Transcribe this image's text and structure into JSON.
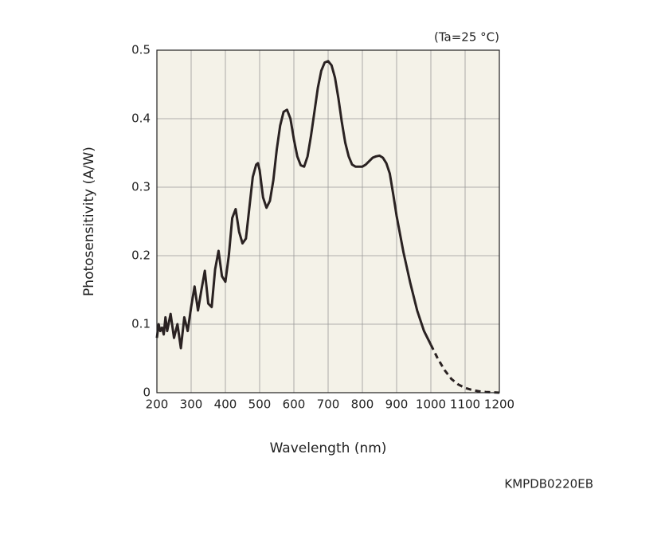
{
  "chart_data": {
    "type": "line",
    "x_label": "Wavelength (nm)",
    "y_label": "Photosensitivity (A/W)",
    "annotation": "(Ta=25 °C)",
    "code": "KMPDB0220EB",
    "xlim": [
      200,
      1200
    ],
    "ylim": [
      0,
      0.5
    ],
    "xticks": [
      200,
      300,
      400,
      500,
      600,
      700,
      800,
      900,
      1000,
      1100,
      1200
    ],
    "yticks": [
      0,
      0.1,
      0.2,
      0.3,
      0.4,
      0.5
    ],
    "grid": true,
    "background": "#f4f2e8",
    "series": [
      {
        "color": "#2a2222",
        "dashed": false,
        "x": [
          200,
          205,
          210,
          215,
          220,
          225,
          230,
          240,
          250,
          260,
          270,
          280,
          290,
          300,
          310,
          320,
          330,
          340,
          350,
          360,
          370,
          380,
          390,
          400,
          410,
          420,
          430,
          440,
          450,
          460,
          470,
          480,
          490,
          495,
          500,
          510,
          520,
          530,
          540,
          550,
          560,
          570,
          580,
          590,
          600,
          610,
          620,
          630,
          640,
          650,
          660,
          670,
          680,
          690,
          700,
          710,
          720,
          730,
          740,
          750,
          760,
          770,
          780,
          790,
          800,
          810,
          820,
          830,
          840,
          850,
          860,
          870,
          880,
          890,
          900,
          920,
          940,
          960,
          980,
          1000
        ],
        "values": [
          0.08,
          0.1,
          0.09,
          0.095,
          0.085,
          0.11,
          0.09,
          0.115,
          0.08,
          0.1,
          0.065,
          0.11,
          0.09,
          0.125,
          0.155,
          0.12,
          0.15,
          0.178,
          0.13,
          0.125,
          0.18,
          0.207,
          0.17,
          0.162,
          0.2,
          0.255,
          0.268,
          0.235,
          0.218,
          0.225,
          0.27,
          0.315,
          0.333,
          0.335,
          0.325,
          0.285,
          0.27,
          0.28,
          0.31,
          0.355,
          0.39,
          0.41,
          0.413,
          0.4,
          0.37,
          0.345,
          0.332,
          0.33,
          0.345,
          0.375,
          0.41,
          0.445,
          0.47,
          0.482,
          0.484,
          0.478,
          0.46,
          0.43,
          0.395,
          0.365,
          0.345,
          0.333,
          0.33,
          0.33,
          0.33,
          0.333,
          0.338,
          0.343,
          0.345,
          0.346,
          0.343,
          0.335,
          0.32,
          0.29,
          0.258,
          0.205,
          0.16,
          0.12,
          0.09,
          0.07
        ]
      },
      {
        "color": "#2a2222",
        "dashed": true,
        "x": [
          1000,
          1020,
          1040,
          1060,
          1080,
          1100,
          1120,
          1140,
          1160,
          1180,
          1200
        ],
        "values": [
          0.07,
          0.05,
          0.033,
          0.02,
          0.012,
          0.007,
          0.004,
          0.002,
          0.001,
          0.0005,
          0
        ]
      }
    ]
  }
}
